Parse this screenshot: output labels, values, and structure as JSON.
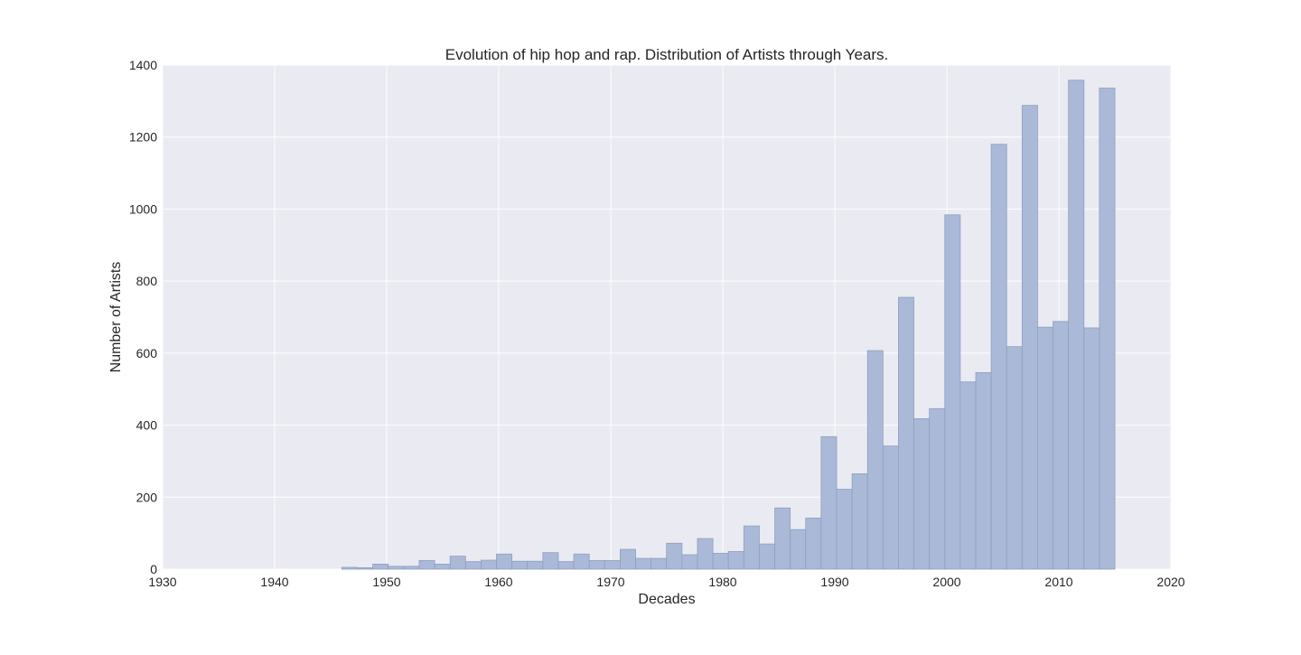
{
  "chart_data": {
    "type": "bar",
    "title": "Evolution of hip hop and rap. Distribution of Artists through Years.",
    "xlabel": "Decades",
    "ylabel": "Number of Artists",
    "xlim": [
      1930,
      2020
    ],
    "ylim": [
      0,
      1400
    ],
    "xticks": [
      1930,
      1940,
      1950,
      1960,
      1970,
      1980,
      1990,
      2000,
      2010,
      2020
    ],
    "yticks": [
      0,
      200,
      400,
      600,
      800,
      1000,
      1200,
      1400
    ],
    "grid": true,
    "bin_start": 1946,
    "bin_width": 1.38,
    "values": [
      5,
      4,
      14,
      8,
      8,
      24,
      14,
      36,
      21,
      25,
      42,
      22,
      22,
      46,
      21,
      42,
      24,
      24,
      55,
      30,
      30,
      72,
      40,
      85,
      44,
      49,
      120,
      70,
      170,
      110,
      142,
      368,
      222,
      265,
      607,
      342,
      755,
      418,
      446,
      984,
      520,
      546,
      1180,
      618,
      1288,
      672,
      688,
      1358,
      670,
      1336
    ],
    "colors": {
      "plot_background": "#eaeaf2",
      "grid": "#ffffff",
      "bar_fill": "#aab9d8",
      "bar_edge": "#8f9fbf"
    }
  }
}
